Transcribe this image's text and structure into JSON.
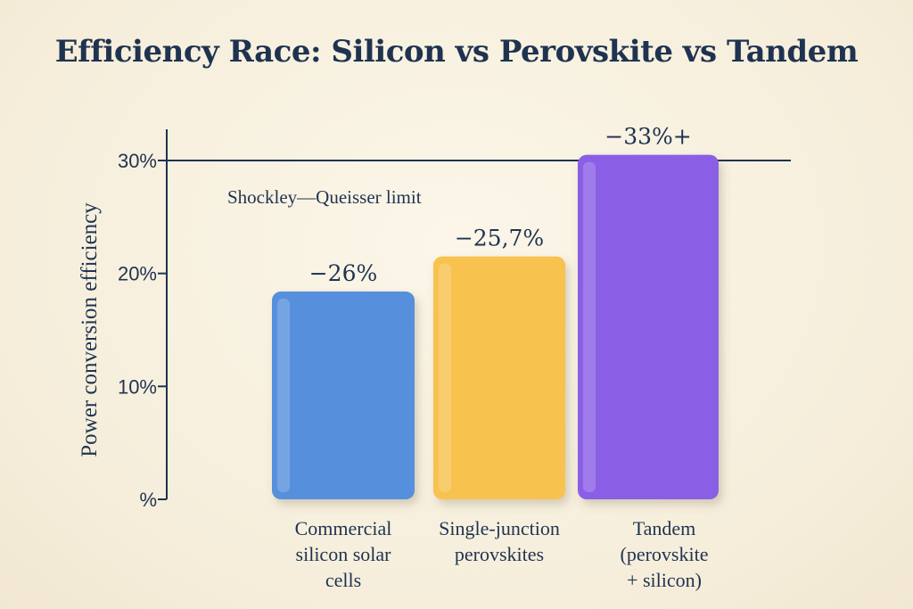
{
  "title": "Efficiency Race: Silicon vs Perovskite vs Tandem",
  "chart_data": {
    "type": "bar",
    "title": "Efficiency Race: Silicon vs Perovskite vs Tandem",
    "ylabel": "Power conversion efficiency",
    "xlabel": "",
    "ylim": [
      0,
      30
    ],
    "yticks": [
      {
        "value": 0,
        "label": "%"
      },
      {
        "value": 10,
        "label": "10%"
      },
      {
        "value": 20,
        "label": "20%"
      },
      {
        "value": 30,
        "label": "30%"
      }
    ],
    "categories": [
      [
        "Commercial",
        "silicon solar",
        "cells"
      ],
      [
        "Single-junction",
        "perovskites"
      ],
      [
        "Tandem",
        "(perovskite",
        "+ silicon)"
      ]
    ],
    "values": [
      18.4,
      21.5,
      30.5
    ],
    "data_labels": [
      "−26%",
      "−25,7%",
      "−33%+"
    ],
    "colors": [
      "#5690dc",
      "#f7c24d",
      "#8a5ee6"
    ],
    "reference_line": {
      "value": 30,
      "label": "Shockley—Queisser limit"
    },
    "grid": false,
    "legend": "none"
  }
}
